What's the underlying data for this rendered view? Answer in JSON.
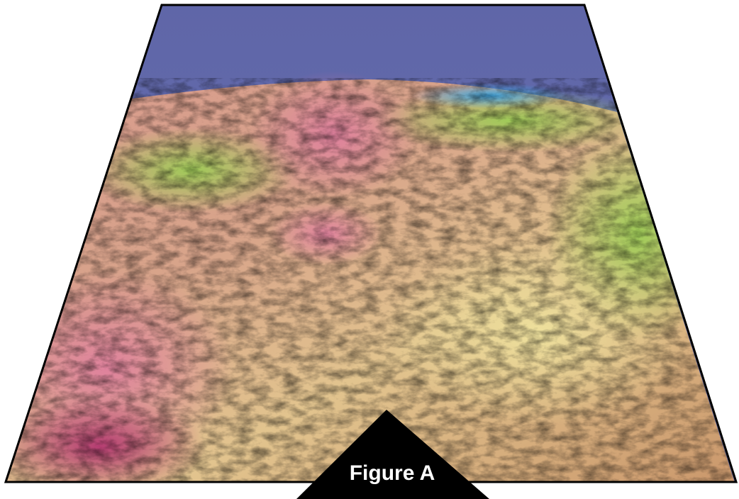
{
  "label": "Figure A"
}
